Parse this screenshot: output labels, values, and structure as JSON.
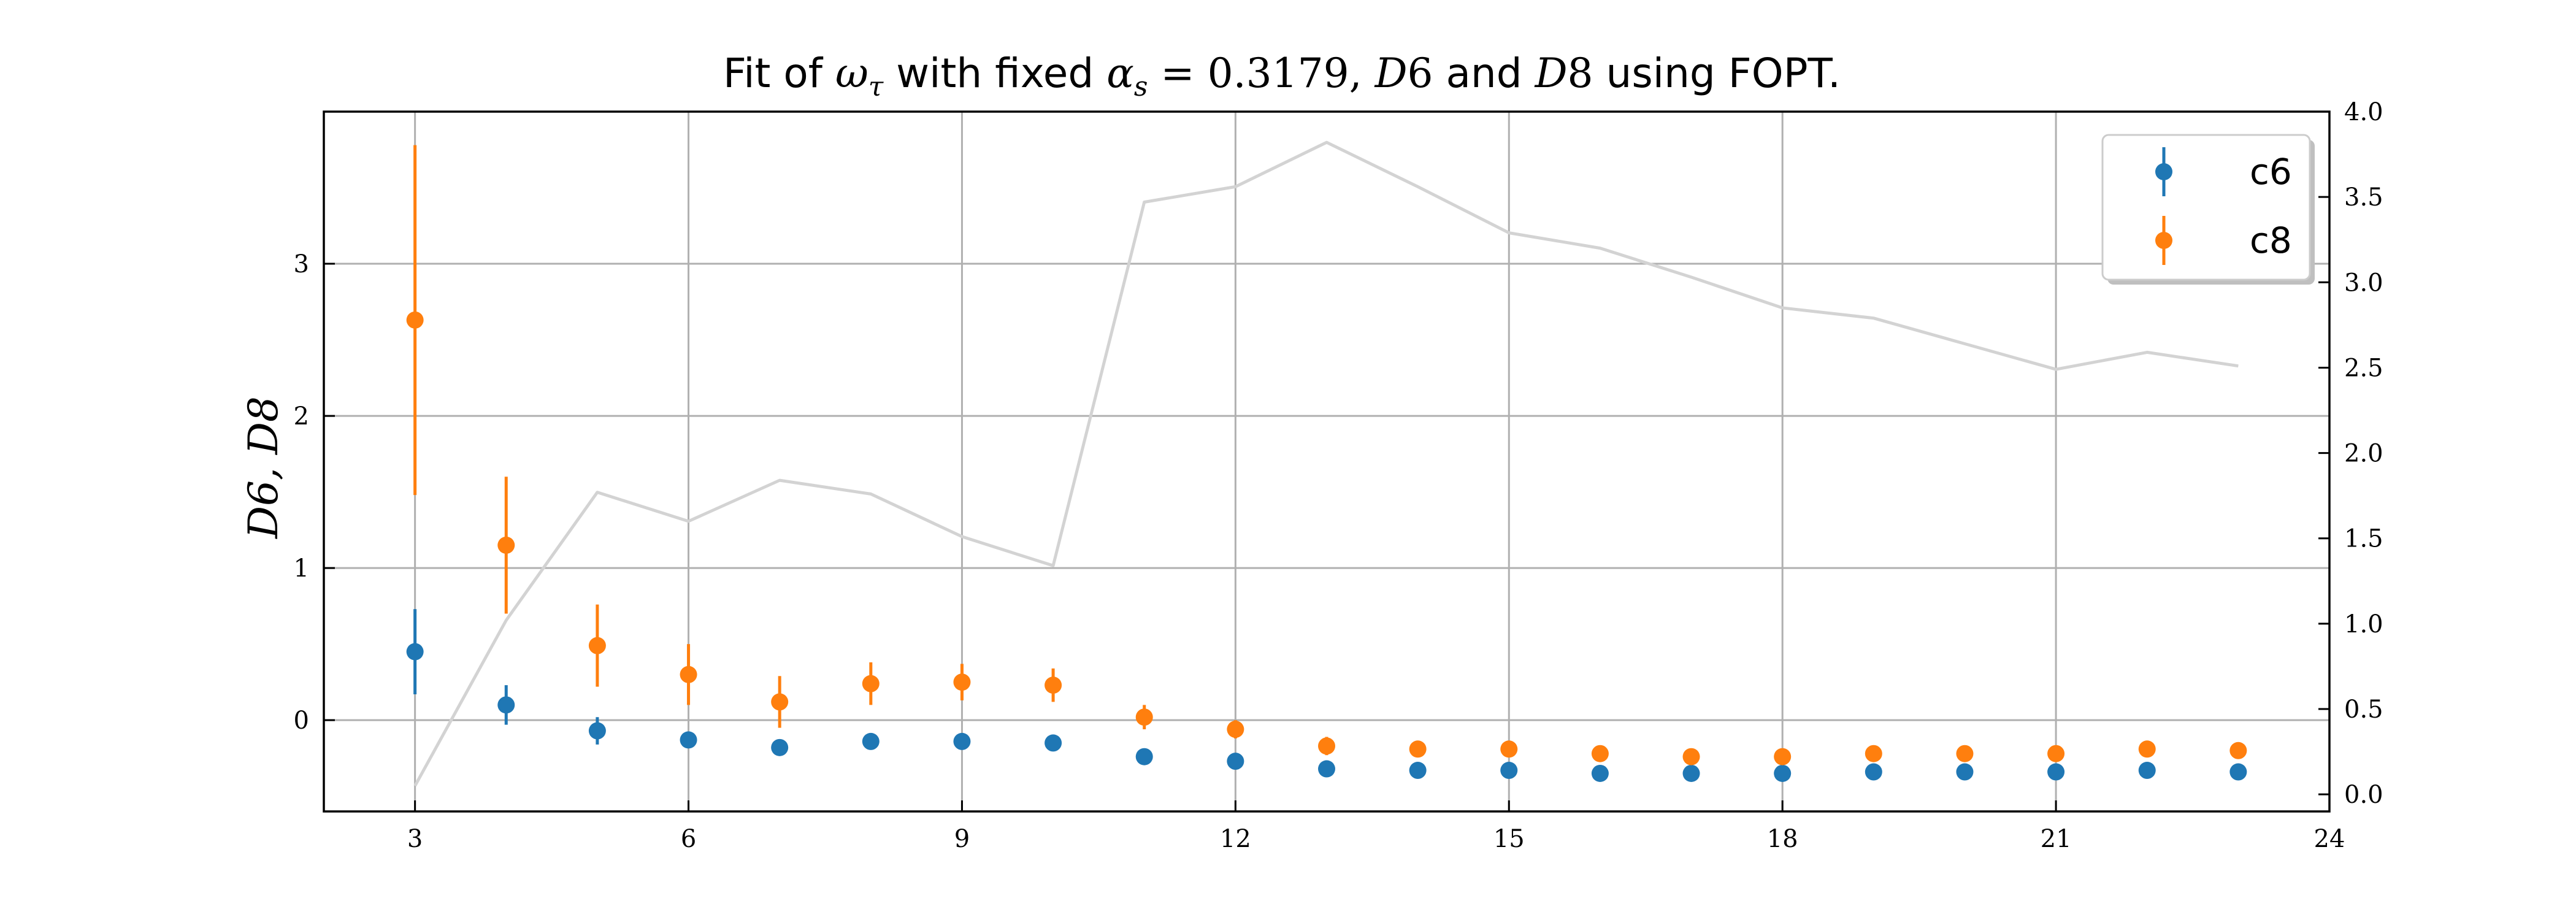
{
  "chart_data": {
    "type": "scatter",
    "title": {
      "plain": "Fit of ω_τ with fixed α_s = 0.3179, D6 and D8 using FOPT.",
      "parts": [
        {
          "text": "Fit of ",
          "style": "text"
        },
        {
          "text": "ω",
          "style": "math"
        },
        {
          "text": "τ",
          "style": "math-sub"
        },
        {
          "text": " with fixed ",
          "style": "text"
        },
        {
          "text": "α",
          "style": "math"
        },
        {
          "text": "s",
          "style": "math-sub"
        },
        {
          "text": " = 0.3179, ",
          "style": "mathup"
        },
        {
          "text": "D",
          "style": "math"
        },
        {
          "text": "6",
          "style": "mathup"
        },
        {
          "text": " and ",
          "style": "text"
        },
        {
          "text": "D",
          "style": "math"
        },
        {
          "text": "8",
          "style": "mathup"
        },
        {
          "text": " using FOPT.",
          "style": "text"
        }
      ]
    },
    "xlabel": "",
    "ylabel": "D6, D8",
    "xlim": [
      2,
      24
    ],
    "ylim": [
      -0.6,
      4.0
    ],
    "xticks": [
      3,
      6,
      9,
      12,
      15,
      18,
      21,
      24
    ],
    "yticks": [
      0,
      1,
      2,
      3
    ],
    "y2lim": [
      -0.1,
      4.0
    ],
    "y2ticks": [
      0.0,
      0.5,
      1.0,
      1.5,
      2.0,
      2.5,
      3.0,
      3.5,
      4.0
    ],
    "y2tick_labels": [
      "0.0",
      "0.5",
      "1.0",
      "1.5",
      "2.0",
      "2.5",
      "3.0",
      "3.5",
      "4.0"
    ],
    "grid": true,
    "legend_position": "top-right",
    "series": [
      {
        "name": "c6",
        "kind": "errorbar",
        "axis": "left",
        "color": "#1f77b4",
        "x": [
          3,
          4,
          5,
          6,
          7,
          8,
          9,
          10,
          11,
          12,
          13,
          14,
          15,
          16,
          17,
          18,
          19,
          20,
          21,
          22,
          23
        ],
        "y": [
          0.45,
          0.1,
          -0.07,
          -0.13,
          -0.18,
          -0.14,
          -0.14,
          -0.15,
          -0.24,
          -0.27,
          -0.32,
          -0.33,
          -0.33,
          -0.35,
          -0.35,
          -0.35,
          -0.34,
          -0.34,
          -0.34,
          -0.33,
          -0.34
        ],
        "err": [
          0.28,
          0.13,
          0.09,
          0.05,
          0.04,
          0.03,
          0.03,
          0.02,
          0.02,
          0.02,
          0.02,
          0.02,
          0.02,
          0.02,
          0.02,
          0.02,
          0.02,
          0.02,
          0.02,
          0.02,
          0.02
        ]
      },
      {
        "name": "c8",
        "kind": "errorbar",
        "axis": "left",
        "color": "#ff7f0e",
        "x": [
          3,
          4,
          5,
          6,
          7,
          8,
          9,
          10,
          11,
          12,
          13,
          14,
          15,
          16,
          17,
          18,
          19,
          20,
          21,
          22,
          23
        ],
        "y": [
          2.63,
          1.15,
          0.49,
          0.3,
          0.12,
          0.24,
          0.25,
          0.23,
          0.02,
          -0.06,
          -0.17,
          -0.19,
          -0.19,
          -0.22,
          -0.24,
          -0.24,
          -0.22,
          -0.22,
          -0.22,
          -0.19,
          -0.2
        ],
        "err": [
          1.15,
          0.45,
          0.27,
          0.2,
          0.17,
          0.14,
          0.12,
          0.11,
          0.08,
          0.06,
          0.06,
          0.05,
          0.04,
          0.04,
          0.03,
          0.03,
          0.03,
          0.03,
          0.03,
          0.03,
          0.03
        ]
      },
      {
        "name": "",
        "kind": "line",
        "axis": "right",
        "color": "#d3d3d3",
        "x": [
          3,
          4,
          5,
          6,
          7,
          8,
          9,
          10,
          11,
          12,
          13,
          14,
          15,
          16,
          17,
          18,
          19,
          20,
          21,
          22,
          23
        ],
        "y": [
          0.05,
          1.02,
          1.77,
          1.6,
          1.84,
          1.76,
          1.51,
          1.34,
          3.47,
          3.56,
          3.82,
          3.56,
          3.29,
          3.2,
          3.03,
          2.85,
          2.79,
          2.64,
          2.49,
          2.59,
          2.51
        ]
      }
    ]
  }
}
